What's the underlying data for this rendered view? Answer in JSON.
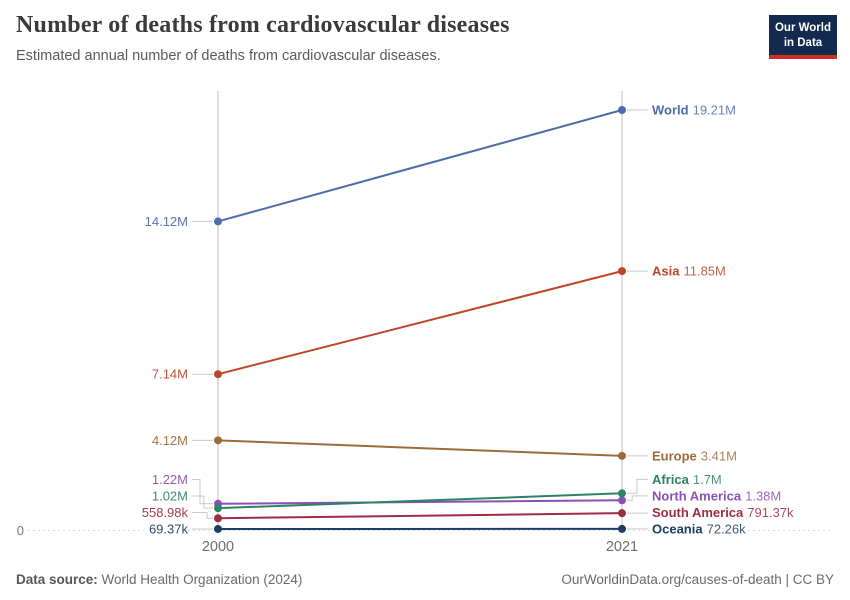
{
  "header": {
    "title": "Number of deaths from cardiovascular diseases",
    "subtitle": "Estimated annual number of deaths from cardiovascular diseases."
  },
  "logo": {
    "line1": "Our World",
    "line2": "in Data",
    "bg_color": "#122A4E",
    "accent_color": "#CE2E22"
  },
  "footer": {
    "source_label": "Data source:",
    "source_value": " World Health Organization (2024)",
    "attribution": "OurWorldinData.org/causes-of-death | CC BY"
  },
  "chart_data": {
    "type": "line",
    "subtype": "slope",
    "title": "Number of deaths from cardiovascular diseases",
    "xlabel": "",
    "ylabel": "",
    "x": [
      2000,
      2021
    ],
    "x_tick_labels": [
      "2000",
      "2021"
    ],
    "zero_label": "0",
    "ylim": [
      0,
      20000000
    ],
    "grid": "zero-line-only",
    "legend_position": "inline-end-labels",
    "series": [
      {
        "name": "World",
        "color": "#4C6DA9",
        "values": [
          14120000,
          19210000
        ],
        "start_label": "14.12M",
        "end_label": "19.21M"
      },
      {
        "name": "Asia",
        "color": "#BE4528",
        "values": [
          7140000,
          11850000
        ],
        "start_label": "7.14M",
        "end_label": "11.85M"
      },
      {
        "name": "Europe",
        "color": "#996D39",
        "values": [
          4120000,
          3410000
        ],
        "start_label": "4.12M",
        "end_label": "3.41M"
      },
      {
        "name": "North America",
        "color": "#8C4FB6",
        "values": [
          1220000,
          1380000
        ],
        "start_label": "1.22M",
        "end_label": "1.38M"
      },
      {
        "name": "Africa",
        "color": "#2C8465",
        "values": [
          1020000,
          1700000
        ],
        "start_label": "1.02M",
        "end_label": "1.7M"
      },
      {
        "name": "South America",
        "color": "#9C2D43",
        "values": [
          558980,
          791370
        ],
        "start_label": "558.98k",
        "end_label": "791.37k"
      },
      {
        "name": "Oceania",
        "color": "#1D3D63",
        "values": [
          69370,
          72260
        ],
        "start_label": "69.37k",
        "end_label": "72.26k"
      }
    ],
    "style": {
      "axis_line_color": "#D4D4D4",
      "zero_line_color": "#DDDDDD",
      "connector_color": "#C9C9C9",
      "tick_text_color": "#6E6E6E"
    }
  }
}
